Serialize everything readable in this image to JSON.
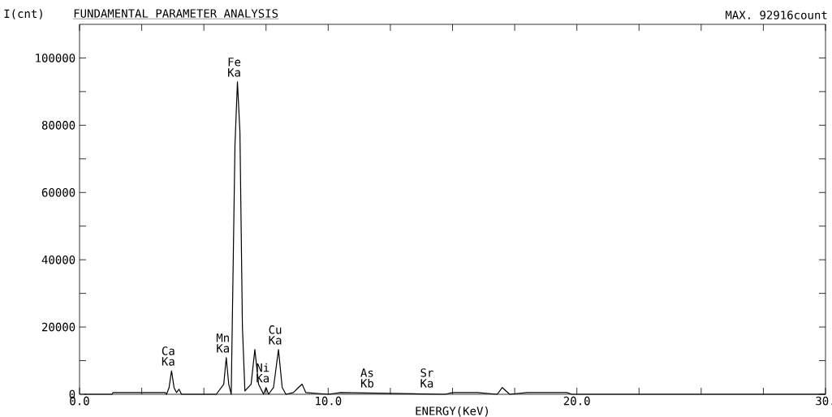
{
  "chart_data": {
    "type": "line",
    "title": "FUNDAMENTAL PARAMETER ANALYSIS",
    "ylabel": "I(cnt)",
    "xlabel": "ENERGY(KeV)",
    "color": "#000000",
    "x": [
      0.2,
      1.3,
      1.35,
      3.45,
      3.5,
      3.6,
      3.7,
      3.8,
      3.9,
      4.0,
      4.1,
      5.5,
      5.8,
      5.9,
      6.0,
      6.1,
      6.25,
      6.35,
      6.45,
      6.55,
      6.65,
      6.9,
      7.05,
      7.2,
      7.4,
      7.5,
      7.6,
      7.8,
      8.0,
      8.15,
      8.3,
      8.6,
      8.8,
      8.95,
      9.1,
      10.0,
      10.5,
      14.7,
      15.0,
      16.0,
      16.8,
      17.0,
      17.3,
      18.0,
      19.6,
      19.8,
      30.0
    ],
    "values": [
      0,
      0,
      500,
      500,
      0,
      2000,
      7000,
      2000,
      500,
      1500,
      0,
      0,
      3000,
      10900,
      3000,
      0,
      74000,
      92916,
      78000,
      20000,
      1000,
      3000,
      13300,
      3000,
      0,
      2000,
      0,
      2000,
      13300,
      2000,
      0,
      500,
      2000,
      3000,
      500,
      0,
      500,
      0,
      500,
      500,
      0,
      2000,
      0,
      500,
      500,
      0,
      0
    ],
    "xlim": [
      0,
      30
    ],
    "ylim": [
      0,
      110000
    ],
    "xticks": [
      {
        "value": 0,
        "label": "0.0"
      },
      {
        "value": 2.5,
        "label": null
      },
      {
        "value": 5,
        "label": null
      },
      {
        "value": 7.5,
        "label": null
      },
      {
        "value": 10,
        "label": "10.0"
      },
      {
        "value": 12.5,
        "label": null
      },
      {
        "value": 15,
        "label": null
      },
      {
        "value": 17.5,
        "label": null
      },
      {
        "value": 20,
        "label": "20.0"
      },
      {
        "value": 22.5,
        "label": null
      },
      {
        "value": 25,
        "label": null
      },
      {
        "value": 27.5,
        "label": null
      },
      {
        "value": 30,
        "label": "30."
      }
    ],
    "yticks": [
      0,
      {
        "value": 10000,
        "label": null
      },
      20000,
      {
        "value": 30000,
        "label": null
      },
      40000,
      {
        "value": 50000,
        "label": null
      },
      60000,
      {
        "value": 70000,
        "label": null
      },
      80000,
      {
        "value": 90000,
        "label": null
      },
      100000
    ],
    "annotations": [
      {
        "text": "Ca Ka",
        "x": 3.7,
        "y": 7000
      },
      {
        "text": "Mn Ka",
        "x": 5.9,
        "y": 10900
      },
      {
        "text": "Fe Ka",
        "x": 6.35,
        "y": 92916
      },
      {
        "text": "Ni Ka",
        "x": 7.5,
        "y": 2000
      },
      {
        "text": "Cu Ka",
        "x": 8.0,
        "y": 13300
      },
      {
        "text": "As Kb",
        "x": 11.7,
        "y": 500
      },
      {
        "text": "Sr Ka",
        "x": 14.1,
        "y": 500
      },
      "MAX. 92916count"
    ]
  }
}
